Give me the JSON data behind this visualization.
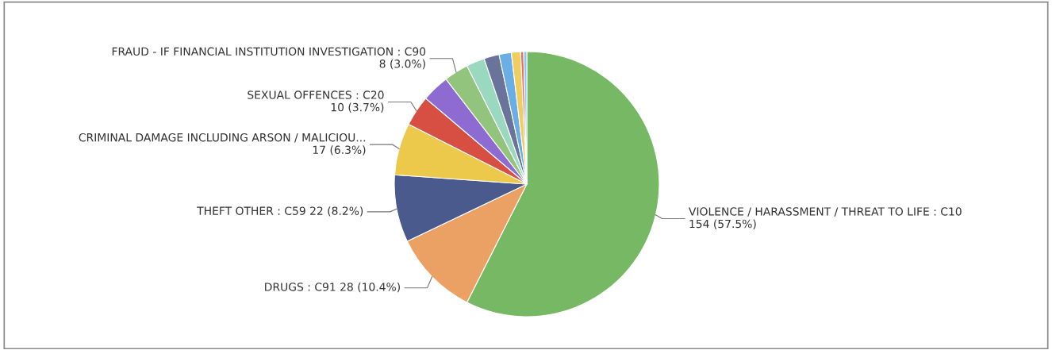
{
  "chart_data": {
    "type": "pie",
    "categories": [
      "VIOLENCE / HARASSMENT / THREAT TO LIFE : C10",
      "DRUGS : C91",
      "THEFT OTHER : C59",
      "CRIMINAL DAMAGE INCLUDING ARSON / MALICIOU...",
      "SEXUAL OFFENCES : C20",
      null,
      "FRAUD - IF FINANCIAL INSTITUTION INVESTIGATION : C90",
      null,
      null,
      null,
      null,
      null,
      null
    ],
    "values": [
      154,
      28,
      22,
      17,
      10,
      9,
      8,
      6,
      5,
      4,
      3,
      1,
      1
    ],
    "value_labels": [
      "154 (57.5%)",
      "28 (10.4%)",
      "22 (8.2%)",
      "17 (6.3%)",
      "10 (3.7%)",
      null,
      "8 (3.0%)",
      null,
      null,
      null,
      null,
      null,
      null
    ],
    "colors": [
      "#77b865",
      "#eba064",
      "#4a5a8c",
      "#ecc94b",
      "#d64f42",
      "#8e6bd0",
      "#93c47d",
      "#9ad9bf",
      "#6a7399",
      "#6aaee5",
      "#f0cd5f",
      "#e0706a",
      "#8ec1ef"
    ],
    "legend": false
  }
}
